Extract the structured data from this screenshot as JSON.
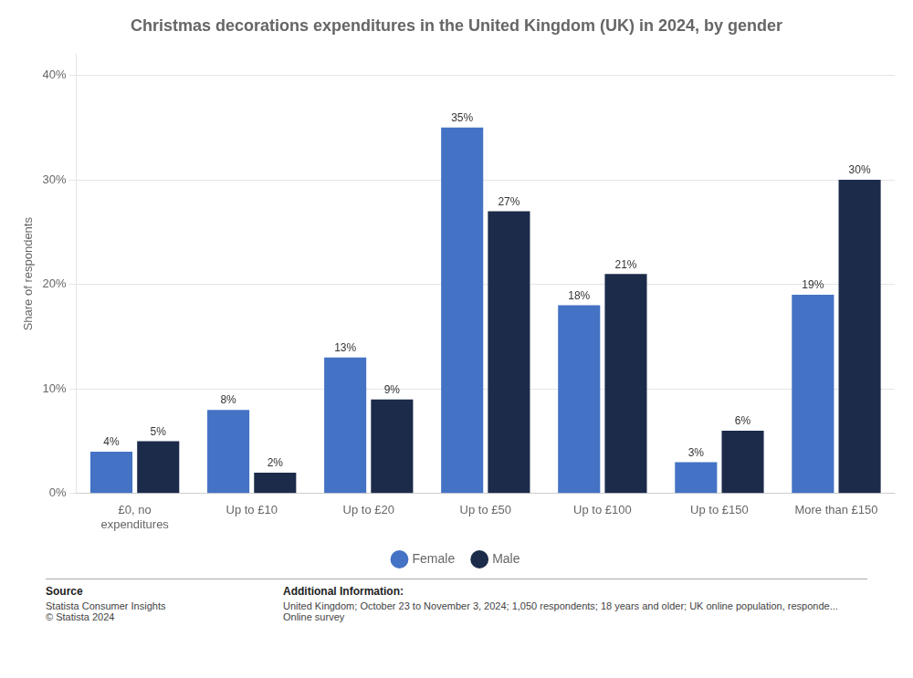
{
  "chart_data": {
    "type": "bar",
    "title": "Christmas decorations expenditures in the United Kingdom (UK) in 2024, by gender",
    "categories": [
      "£0, no\nexpenditures",
      "Up to £10",
      "Up to £20",
      "Up to £50",
      "Up to £100",
      "Up to £150",
      "More than £150"
    ],
    "series": [
      {
        "name": "Female",
        "color": "#4472C4",
        "values": [
          4,
          8,
          13,
          35,
          18,
          3,
          19
        ],
        "value_labels": [
          "4%",
          "8%",
          "13%",
          "35%",
          "18%",
          "3%",
          "19%"
        ]
      },
      {
        "name": "Male",
        "color": "#1C2B4A",
        "values": [
          5,
          2,
          9,
          27,
          21,
          6,
          30
        ],
        "value_labels": [
          "5%",
          "2%",
          "9%",
          "27%",
          "21%",
          "6%",
          "30%"
        ]
      }
    ],
    "ylabel": "Share of respondents",
    "ylim": [
      0,
      42
    ],
    "yticks": [
      {
        "value": 0,
        "label": "0%"
      },
      {
        "value": 10,
        "label": "10%"
      },
      {
        "value": 20,
        "label": "20%"
      },
      {
        "value": 30,
        "label": "30%"
      },
      {
        "value": 40,
        "label": "40%"
      }
    ],
    "grid": true,
    "legend": "bottom",
    "data_labels": true,
    "annotations": [
      "Source",
      "Statista Consumer Insights\n© Statista 2024",
      "Additional Information:",
      "United Kingdom; October 23 to November 3, 2024; 1,050 respondents; 18 years and older; UK online population, responde...\nOnline survey"
    ]
  }
}
